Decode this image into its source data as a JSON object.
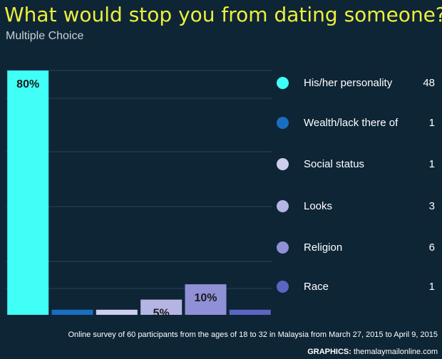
{
  "header": {
    "title": "What would stop you from dating someone?",
    "subtitle": "Multiple Choice"
  },
  "chart_data": {
    "type": "bar",
    "categories": [
      "His/her personality",
      "Wealth/lack there of",
      "Social status",
      "Looks",
      "Religion",
      "Race"
    ],
    "values": [
      80,
      1.67,
      1.67,
      5,
      10,
      1.67
    ],
    "counts": [
      48,
      1,
      1,
      3,
      6,
      1
    ],
    "bar_labels": [
      "80%",
      "",
      "",
      "5%",
      "10%",
      ""
    ],
    "colors": [
      "#3ffff7",
      "#1a6ec0",
      "#cdcdee",
      "#b5b5e4",
      "#9090d6",
      "#5b65c2"
    ],
    "ylim": [
      0,
      80
    ],
    "grid": true,
    "legend_position": "right"
  },
  "footer": {
    "note": "Online survey of 60 participants from the ages of 18 to 32 in Malaysia from March 27, 2015 to April 9, 2015",
    "credit_label": "GRAPHICS:",
    "credit_source": "themalaymailonline.com"
  }
}
